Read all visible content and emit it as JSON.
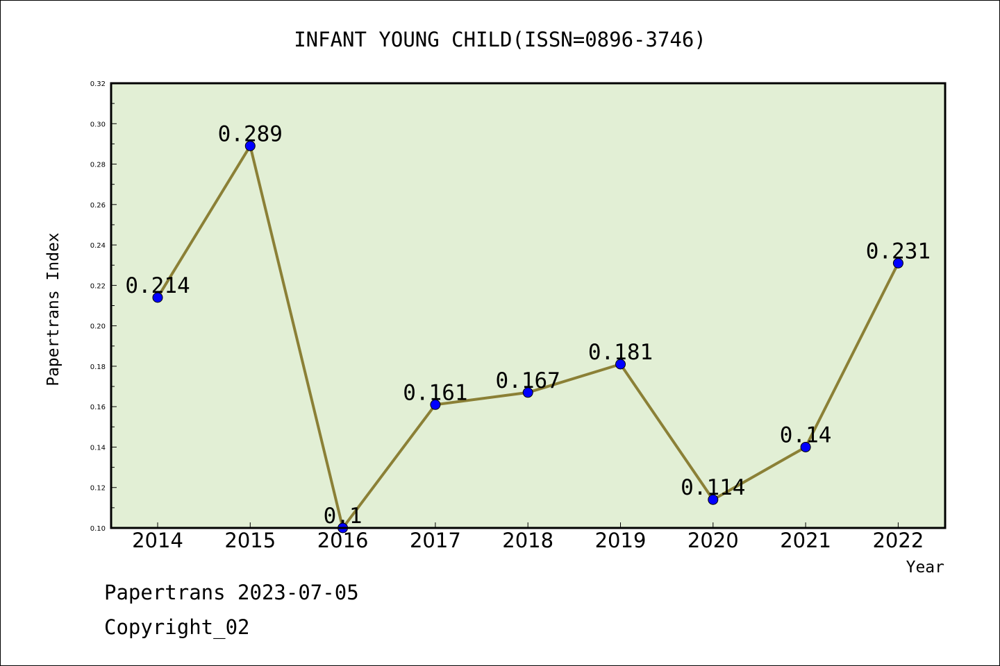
{
  "chart_data": {
    "type": "line",
    "title": "INFANT YOUNG CHILD(ISSN=0896-3746)",
    "xlabel": "Year",
    "ylabel": "Papertrans Index",
    "x": [
      "2014",
      "2015",
      "2016",
      "2017",
      "2018",
      "2019",
      "2020",
      "2021",
      "2022"
    ],
    "values": [
      0.214,
      0.289,
      0.1,
      0.161,
      0.167,
      0.181,
      0.114,
      0.14,
      0.231
    ],
    "data_labels": [
      "0.214",
      "0.289",
      "0.1",
      "0.161",
      "0.167",
      "0.181",
      "0.114",
      "0.14",
      "0.231"
    ],
    "ylim": [
      0.1,
      0.32
    ],
    "yticks": [
      "0.10",
      "0.12",
      "0.14",
      "0.16",
      "0.18",
      "0.20",
      "0.22",
      "0.24",
      "0.26",
      "0.28",
      "0.30",
      "0.32"
    ],
    "grid": false,
    "legend": "none",
    "colors": {
      "plot_background": "#e2efd5",
      "line": "#8b8036",
      "marker": "#0000ff"
    }
  },
  "footer": {
    "line1": "Papertrans 2023-07-05",
    "line2": "Copyright_02"
  }
}
